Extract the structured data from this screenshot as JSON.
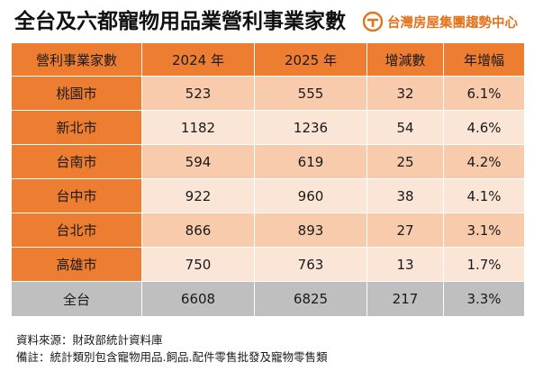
{
  "header": {
    "title": "全台及六都寵物用品業營利事業家數",
    "brand": "台灣房屋集團趨勢中心",
    "brand_color": "#e2731c"
  },
  "table": {
    "columns": [
      "營利事業家數",
      "2024 年",
      "2025 年",
      "增減數",
      "年增幅"
    ],
    "rows": [
      {
        "city": "桃園市",
        "y2024": "523",
        "y2025": "555",
        "change": "32",
        "growth": "6.1%"
      },
      {
        "city": "新北市",
        "y2024": "1182",
        "y2025": "1236",
        "change": "54",
        "growth": "4.6%"
      },
      {
        "city": "台南市",
        "y2024": "594",
        "y2025": "619",
        "change": "25",
        "growth": "4.2%"
      },
      {
        "city": "台中市",
        "y2024": "922",
        "y2025": "960",
        "change": "38",
        "growth": "4.1%"
      },
      {
        "city": "台北市",
        "y2024": "866",
        "y2025": "893",
        "change": "27",
        "growth": "3.1%"
      },
      {
        "city": "高雄市",
        "y2024": "750",
        "y2025": "763",
        "change": "13",
        "growth": "1.7%"
      }
    ],
    "total": {
      "city": "全台",
      "y2024": "6608",
      "y2025": "6825",
      "change": "217",
      "growth": "3.3%"
    },
    "colors": {
      "header": "#ed7d31",
      "row_odd": "#f8cbad",
      "row_even": "#fbe5d6",
      "total": "#bfbfbf"
    }
  },
  "notes": {
    "source": "資料來源：財政部統計資料庫",
    "remark": "備註：統計類別包含寵物用品.飼品.配件零售批發及寵物零售類"
  }
}
